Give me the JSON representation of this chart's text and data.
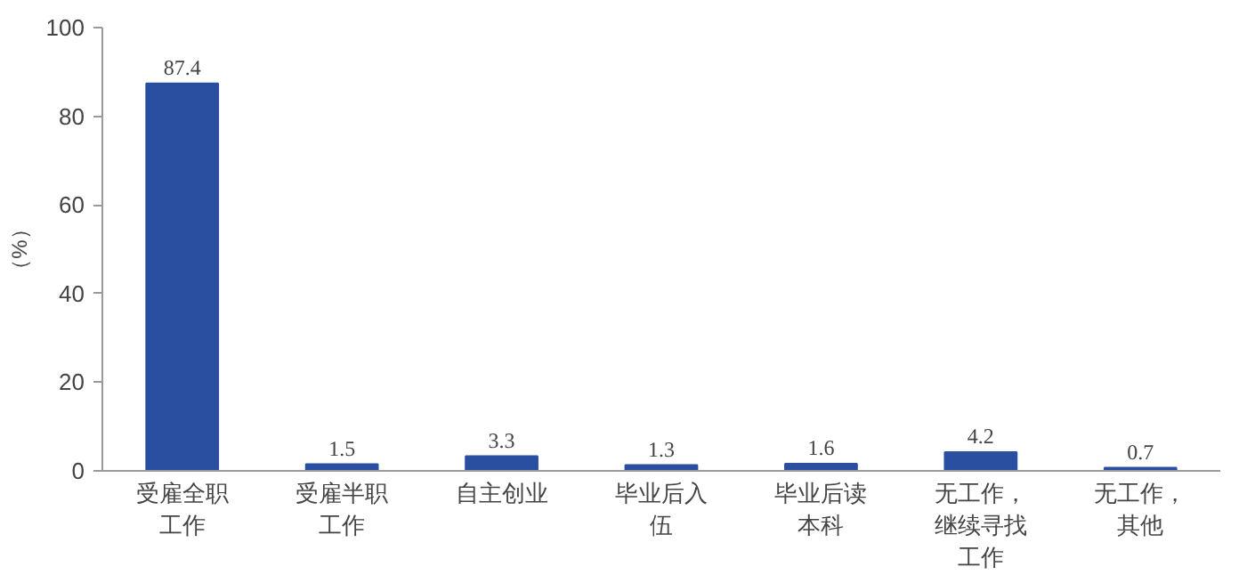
{
  "chart_data": {
    "type": "bar",
    "ylabel": "（%）",
    "categories": [
      "受雇全职工作",
      "受雇半职工作",
      "自主创业",
      "毕业后入伍",
      "毕业后读本科",
      "无工作，继续寻找工作",
      "无工作，其他"
    ],
    "values": [
      87.4,
      1.5,
      3.3,
      1.3,
      1.6,
      4.2,
      0.7
    ],
    "color": "#2a4ea0",
    "ylim": [
      0,
      100
    ],
    "yticks": [
      0,
      20,
      40,
      60,
      80,
      100
    ],
    "grid": false,
    "data_labels": true
  }
}
